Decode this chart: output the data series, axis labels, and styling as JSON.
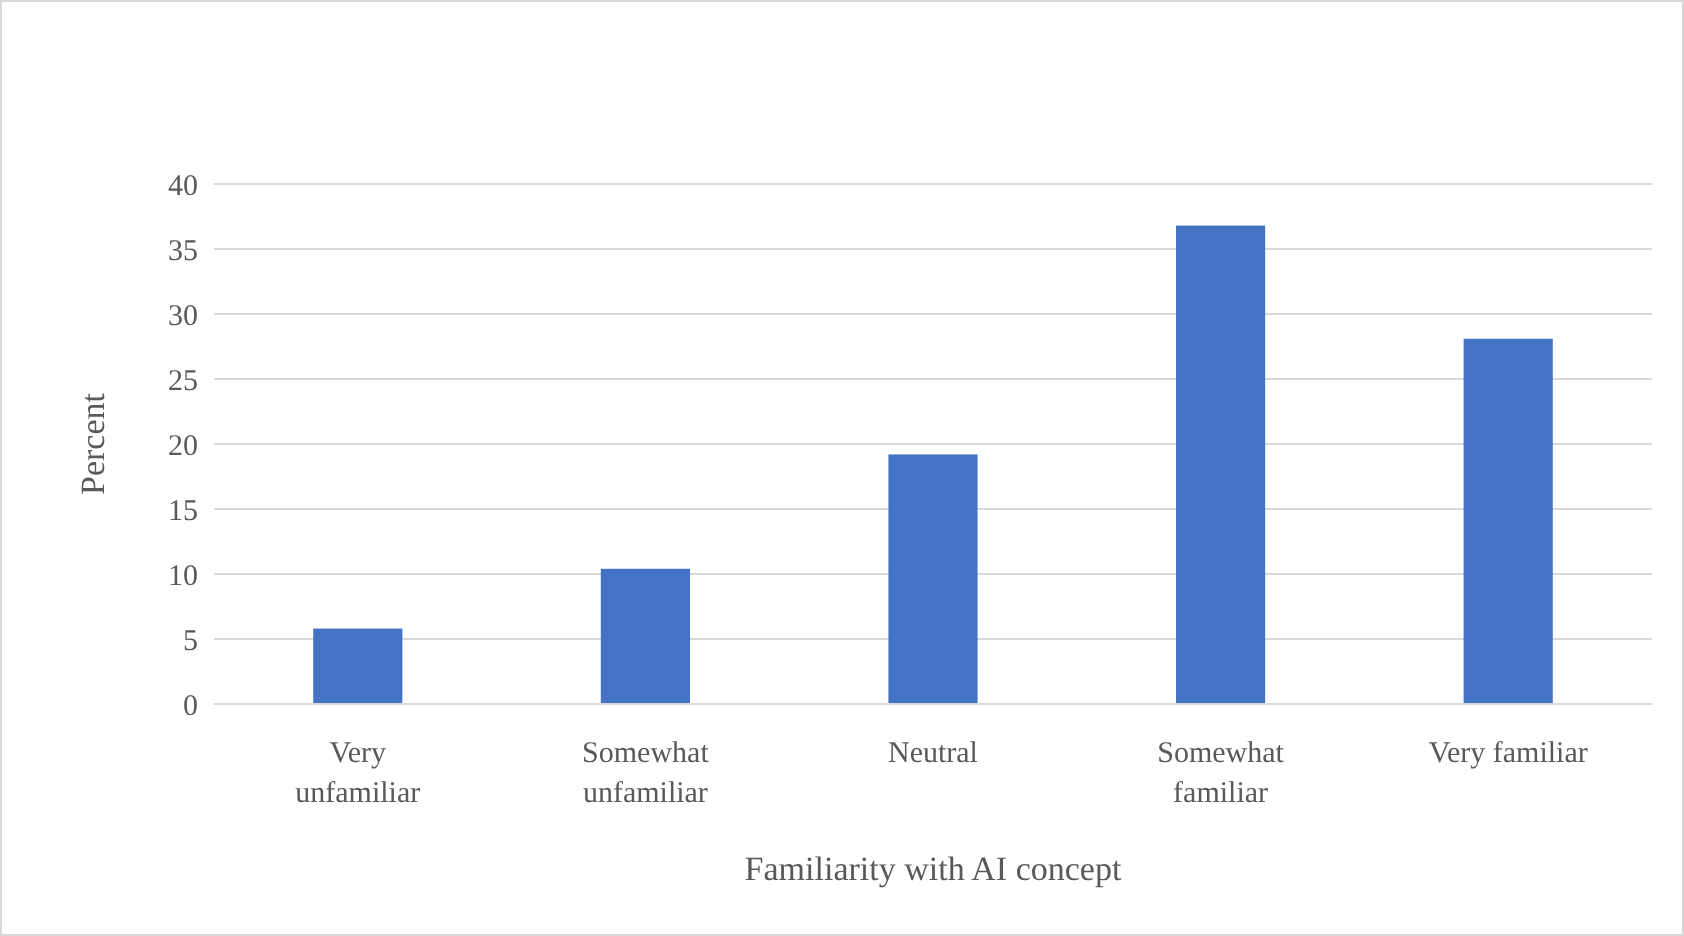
{
  "chart_data": {
    "type": "bar",
    "xlabel": "Familiarity with AI concept",
    "ylabel": "Percent",
    "categories": [
      "Very unfamiliar",
      "Somewhat unfamiliar",
      "Neutral",
      "Somewhat familiar",
      "Very familiar"
    ],
    "values": [
      5.8,
      10.4,
      19.2,
      36.8,
      28.1
    ],
    "color": "#4472c4",
    "ylim": [
      0,
      40
    ],
    "yticks": [
      0,
      5,
      10,
      15,
      20,
      25,
      30,
      35,
      40
    ],
    "grid": "y"
  }
}
